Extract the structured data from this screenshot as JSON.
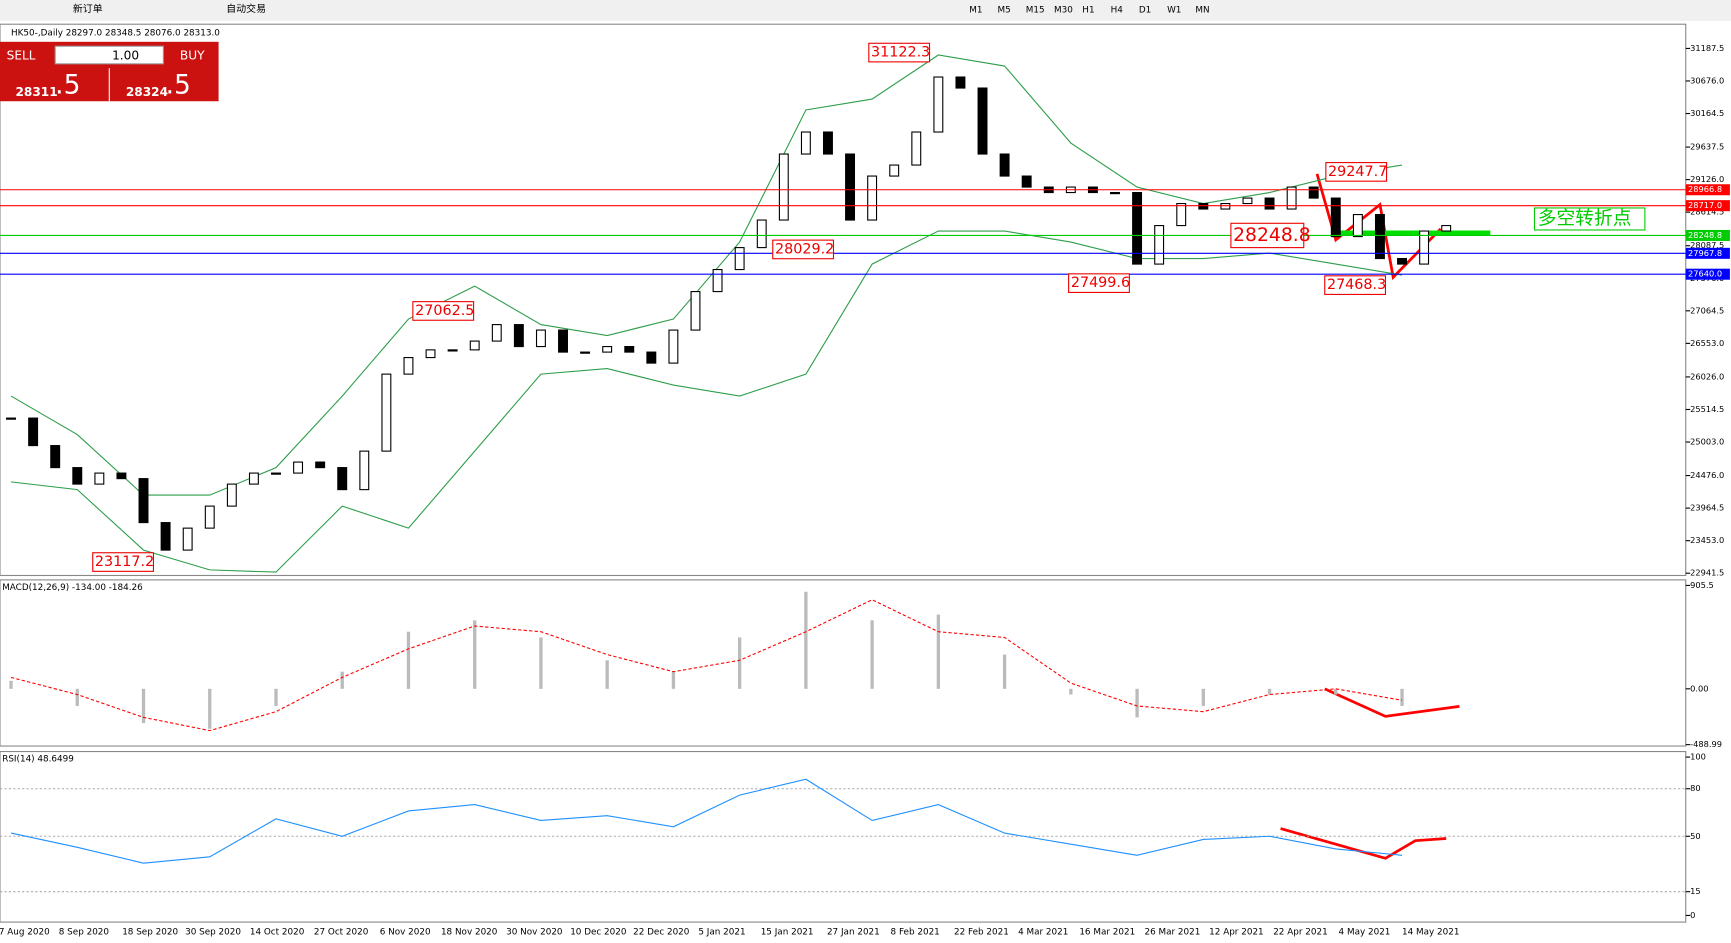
{
  "toolbar": {
    "items": [
      "新订单",
      "自动交易"
    ],
    "timeframes": [
      "M1",
      "M5",
      "M15",
      "M30",
      "H1",
      "H4",
      "D1",
      "W1",
      "MN"
    ]
  },
  "chart_header": "HK50-,Daily  28297.0 28348.5 28076.0 28313.0",
  "order_panel": {
    "sell": "SELL",
    "lot": "1.00",
    "buy": "BUY",
    "bid_main": "28311",
    "bid_frac": ".5",
    "ask_main": "28324",
    "ask_frac": ".5"
  },
  "price_chart": {
    "type": "candlestick",
    "ylim": [
      22906,
      31568
    ],
    "yticks": [
      31187.5,
      {
        "value": 30676,
        "label": "30676.0"
      },
      30164.5,
      29637.5,
      {
        "value": 29126,
        "label": "29126.0"
      },
      28614.5,
      28087.5,
      {
        "value": 27576,
        "label": "27576.0"
      },
      27064.5,
      {
        "value": 26553,
        "label": "26553.0"
      },
      {
        "value": 26026,
        "label": "26026.0"
      },
      25514.5,
      {
        "value": 25003,
        "label": "25003.0"
      },
      {
        "value": 24476,
        "label": "24476.0"
      },
      23964.5,
      {
        "value": 23453,
        "label": "23453.0"
      },
      22941.5
    ],
    "close": [
      25379,
      24947,
      24601,
      24342,
      24515,
      24428,
      23737,
      23305,
      23650,
      23996,
      24342,
      24515,
      24515,
      24688,
      24601,
      24255,
      24860,
      26070,
      26330,
      26451,
      26451,
      26589,
      26848,
      26503,
      26762,
      26416,
      26416,
      26503,
      26416,
      26243,
      26762,
      27367,
      27713,
      28058,
      28491,
      29528,
      29874,
      29528,
      28491,
      29182,
      29355,
      29874,
      30738,
      30565,
      29528,
      29182,
      29009,
      28923,
      29009,
      28923,
      28923,
      27799,
      28404,
      28750,
      28664,
      28750,
      28836,
      28664,
      29009,
      28836,
      28231,
      28577,
      27886,
      27799,
      28318,
      28404
    ],
    "bollinger_upper": [
      25725,
      25120,
      24169,
      24169,
      24601,
      25725,
      26935,
      27453,
      26848,
      26676,
      26935,
      28145,
      30220,
      30392,
      31084,
      30911,
      29701,
      29009,
      28750,
      28923,
      29182,
      29355
    ],
    "bollinger_lower": [
      24377,
      24255,
      23305,
      22994,
      22959,
      23996,
      23650,
      24860,
      26070,
      26157,
      25898,
      25725,
      26070,
      27799,
      28318,
      28318,
      28145,
      27886,
      27886,
      27972,
      27799,
      27626
    ],
    "levels": {
      "values": [
        28966.8,
        28717.0,
        28248.8,
        27967.8,
        27640.0
      ],
      "value_labels": [
        "28966.8",
        "28717.0",
        "28248.8",
        "27967.8",
        "27640.0"
      ],
      "colors": [
        "#ff0000",
        "#ff0000",
        "#00cc00",
        "#0000ff",
        "#0000ff"
      ]
    },
    "annotations": [
      31122.3,
      29247.7,
      28029.2,
      28248.8,
      27062.5,
      27499.6,
      27468.3,
      23117.2
    ],
    "note": "多空转折点"
  },
  "macd": {
    "label": "MACD(12,26,9) -134.00 -184.26",
    "ylim": [
      -501,
      954
    ],
    "yticks": [
      905.5,
      {
        "value": 0,
        "label": "0.00"
      },
      -488.99
    ],
    "histogram": [
      70,
      -150,
      -300,
      -350,
      -150,
      150,
      500,
      600,
      450,
      250,
      150,
      450,
      850,
      600,
      650,
      300,
      -50,
      -250,
      -150,
      -50,
      -50,
      -150
    ],
    "signal": [
      100,
      -50,
      -250,
      -366,
      -200,
      100,
      350,
      550,
      500,
      300,
      150,
      250,
      500,
      780,
      500,
      450,
      50,
      -150,
      -200,
      -50,
      0,
      -100
    ],
    "color": "#ff0000"
  },
  "rsi": {
    "label": "RSI(14) 48.6499",
    "ylim": [
      -4.2,
      103.5
    ],
    "yticks": [
      100,
      80,
      50,
      15,
      0
    ],
    "values": [
      52,
      43,
      33,
      37,
      61,
      50,
      66,
      70,
      60,
      63,
      56,
      76,
      86,
      60,
      70,
      52,
      45,
      38,
      48,
      50,
      42,
      38
    ],
    "color": "#1e90ff"
  },
  "dates": [
    "7 Aug 2020",
    "8 Sep 2020",
    "18 Sep 2020",
    "30 Sep 2020",
    "14 Oct 2020",
    "27 Oct 2020",
    "6 Nov 2020",
    "18 Nov 2020",
    "30 Nov 2020",
    "10 Dec 2020",
    "22 Dec 2020",
    "5 Jan 2021",
    "15 Jan 2021",
    "27 Jan 2021",
    "8 Feb 2021",
    "22 Feb 2021",
    "4 Mar 2021",
    "16 Mar 2021",
    "26 Mar 2021",
    "12 Apr 2021",
    "22 Apr 2021",
    "4 May 2021",
    "14 May 2021"
  ]
}
